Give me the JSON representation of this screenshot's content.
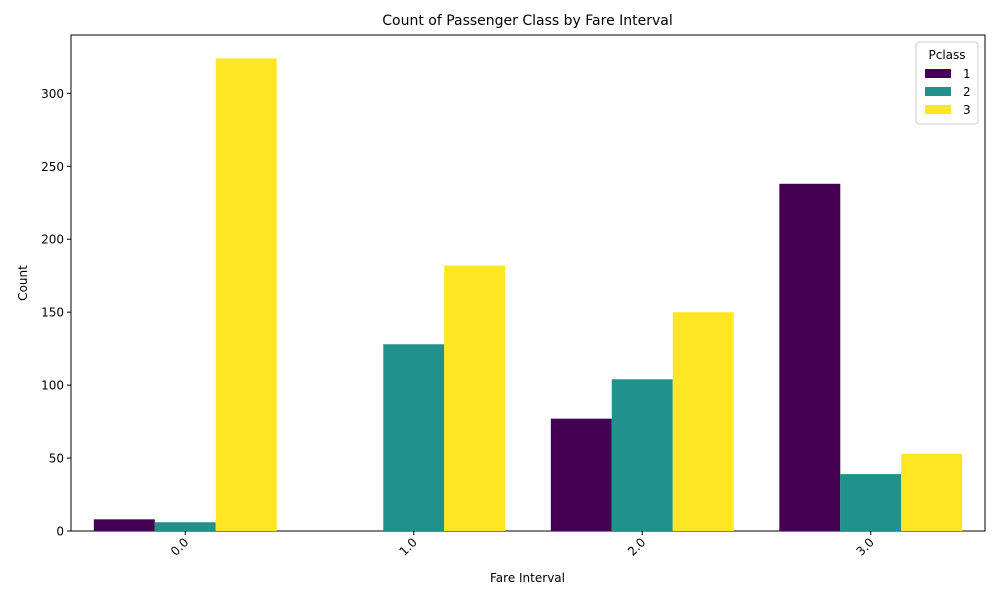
{
  "chart_data": {
    "type": "bar",
    "title": "Count of Passenger Class by Fare Interval",
    "xlabel": "Fare Interval",
    "ylabel": "Count",
    "categories": [
      "0.0",
      "1.0",
      "2.0",
      "3.0"
    ],
    "series": [
      {
        "name": "1",
        "color": "#440154",
        "values": [
          8,
          0,
          77,
          238
        ]
      },
      {
        "name": "2",
        "color": "#21918c",
        "values": [
          6,
          128,
          104,
          39
        ]
      },
      {
        "name": "3",
        "color": "#fde725",
        "values": [
          324,
          182,
          150,
          53
        ]
      }
    ],
    "ylim": [
      0,
      340
    ],
    "yticks": [
      0,
      50,
      100,
      150,
      200,
      250,
      300
    ],
    "ytick_labels": [
      "0",
      "50",
      "100",
      "150",
      "200",
      "250",
      "300"
    ],
    "x_tick_rotation_deg": 45,
    "legend": {
      "title": "Pclass",
      "placement": "top-right"
    },
    "grid": false
  }
}
